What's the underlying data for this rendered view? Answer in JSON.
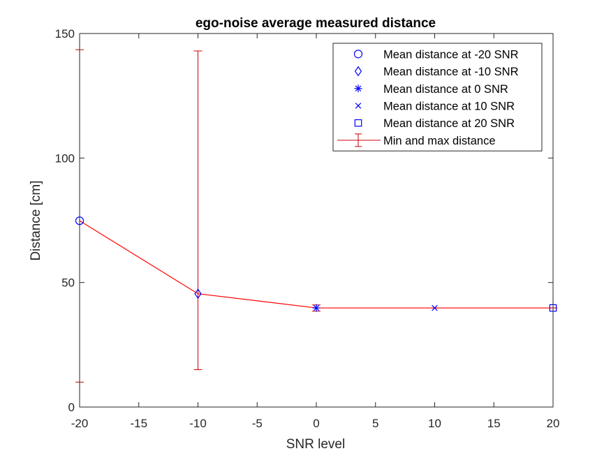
{
  "chart_data": {
    "type": "line",
    "title": "ego-noise average measured distance",
    "xlabel": "SNR level",
    "ylabel": "Distance [cm]",
    "xlim": [
      -20,
      20
    ],
    "ylim": [
      0,
      150
    ],
    "xticks": [
      -20,
      -15,
      -10,
      -5,
      0,
      5,
      10,
      15,
      20
    ],
    "yticks": [
      0,
      50,
      100,
      150
    ],
    "grid": false,
    "legend_position": "top-right",
    "colors": {
      "marker": "#0000ff",
      "line": "#ff0000",
      "errorbar": "#cc0000",
      "axis": "#262626"
    },
    "points": [
      {
        "x": -20,
        "y": 74.8,
        "marker": "circle",
        "legend": "Mean distance at -20 SNR"
      },
      {
        "x": -10,
        "y": 45.5,
        "marker": "diamond",
        "legend": "Mean distance at -10 SNR"
      },
      {
        "x": 0,
        "y": 39.8,
        "marker": "asterisk",
        "legend": "Mean distance at 0 SNR"
      },
      {
        "x": 10,
        "y": 39.8,
        "marker": "cross",
        "legend": "Mean distance at 10 SNR"
      },
      {
        "x": 20,
        "y": 39.8,
        "marker": "square",
        "legend": "Mean distance at 20 SNR"
      }
    ],
    "errorbars": {
      "legend": "Min and max distance",
      "x": [
        -20,
        -10,
        0,
        10,
        20
      ],
      "min": [
        10,
        15,
        38.5,
        39.8,
        39.8
      ],
      "max": [
        143.5,
        143,
        41,
        39.8,
        39.8
      ]
    }
  }
}
